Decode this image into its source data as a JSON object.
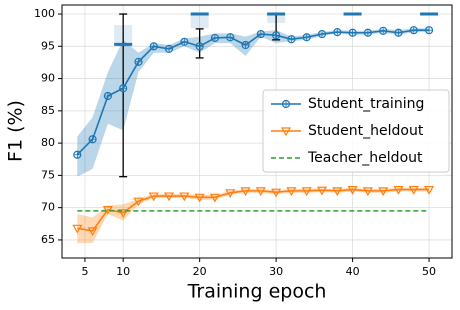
{
  "chart_data": {
    "type": "line",
    "x_label": "Training epoch",
    "y_label": "F1 (%)",
    "x": [
      4,
      6,
      8,
      10,
      12,
      14,
      16,
      18,
      20,
      22,
      24,
      26,
      28,
      30,
      32,
      34,
      36,
      38,
      40,
      42,
      44,
      46,
      48,
      50
    ],
    "xlim": [
      2,
      53
    ],
    "xticks": [
      5,
      10,
      20,
      30,
      40,
      50
    ],
    "ylim": [
      62.2,
      101.4
    ],
    "yticks": [
      65,
      70,
      75,
      80,
      85,
      90,
      95,
      100
    ],
    "grid": true,
    "legend": "center right",
    "series": [
      {
        "name": "Student_training",
        "color": "#1f77b4",
        "marker": "circle",
        "values": [
          78.2,
          80.6,
          87.3,
          88.5,
          92.6,
          95.0,
          94.6,
          95.7,
          95.0,
          96.3,
          96.4,
          95.2,
          96.9,
          96.7,
          96.1,
          96.4,
          96.9,
          97.2,
          97.1,
          97.1,
          97.4,
          97.1,
          97.5,
          97.5
        ],
        "lower": [
          74.8,
          76,
          83,
          82,
          91,
          94,
          94,
          95,
          94,
          95.5,
          95.5,
          93.5,
          96.5,
          95.5,
          95.8,
          96,
          96.6,
          97,
          96.8,
          96.8,
          97.1,
          96.8,
          97.2,
          97.2
        ],
        "upper": [
          81,
          84,
          91,
          96,
          94,
          95.5,
          95.2,
          96.2,
          96.5,
          97,
          97,
          96.5,
          97.3,
          97.5,
          96.5,
          96.8,
          97.2,
          97.5,
          97.4,
          97.4,
          97.7,
          97.5,
          97.8,
          97.8
        ]
      },
      {
        "name": "Student_heldout",
        "color": "#ff7f0e",
        "marker": "triangle",
        "values": [
          66.8,
          66.4,
          69.7,
          69.2,
          71.0,
          71.8,
          71.8,
          71.8,
          71.6,
          71.6,
          72.3,
          72.6,
          72.6,
          72.4,
          72.6,
          72.6,
          72.7,
          72.6,
          72.8,
          72.6,
          72.6,
          72.8,
          72.8,
          72.8
        ],
        "lower": [
          64.5,
          64.5,
          69,
          68,
          70.5,
          71.5,
          71.5,
          71.5,
          71.2,
          71.2,
          72,
          72.3,
          72.3,
          72.1,
          72.3,
          72.3,
          72.4,
          72.3,
          72.5,
          72.3,
          72.3,
          72.5,
          72.5,
          72.5
        ],
        "upper": [
          69,
          68.5,
          70.3,
          70.5,
          71.4,
          72.1,
          72.1,
          72.1,
          72,
          72,
          72.6,
          72.9,
          72.9,
          72.7,
          72.9,
          72.9,
          73,
          72.9,
          73.1,
          72.9,
          72.9,
          73.1,
          73.1,
          73.1
        ]
      },
      {
        "name": "Teacher_heldout",
        "color": "#2ca02c",
        "marker": "dashed",
        "x": [
          4,
          50
        ],
        "values": [
          69.5,
          69.5
        ]
      }
    ],
    "boxes": {
      "color": "#1f77b4",
      "x": [
        10,
        20,
        30,
        40,
        50
      ],
      "low": [
        74.8,
        93.2,
        96.0,
        100,
        100
      ],
      "q1": [
        95.3,
        97.8,
        98.6,
        100,
        100
      ],
      "median": [
        95.3,
        100,
        100,
        100,
        100
      ],
      "q3": [
        98.3,
        100,
        100,
        100,
        100
      ],
      "high": [
        100,
        97.7,
        100,
        100,
        100
      ]
    }
  }
}
